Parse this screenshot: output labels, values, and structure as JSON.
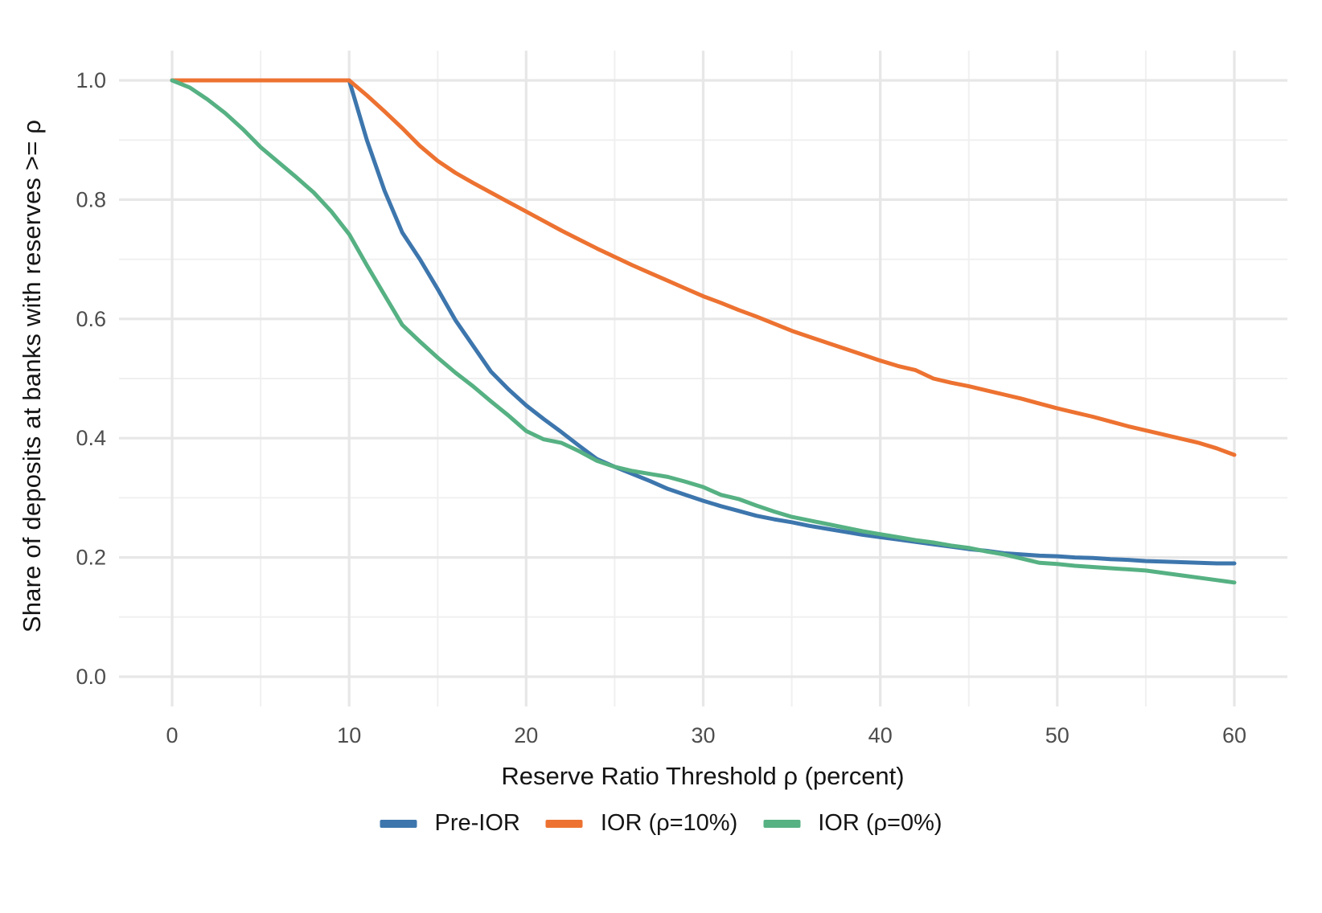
{
  "chart_data": {
    "type": "line",
    "title": "",
    "xlabel": "Reserve Ratio Threshold ρ (percent)",
    "ylabel": "Share of deposits at banks with reserves >= ρ",
    "xlim": [
      0,
      60
    ],
    "ylim": [
      0,
      1.0
    ],
    "grid": true,
    "legend_position": "bottom",
    "x_ticks": [
      0,
      10,
      20,
      30,
      40,
      50,
      60
    ],
    "x_tick_labels": [
      "0",
      "10",
      "20",
      "30",
      "40",
      "50",
      "60"
    ],
    "x_minor_ticks": [
      5,
      15,
      25,
      35,
      45,
      55
    ],
    "y_ticks": [
      0.0,
      0.2,
      0.4,
      0.6,
      0.8,
      1.0
    ],
    "y_tick_labels": [
      "0.0",
      "0.2",
      "0.4",
      "0.6",
      "0.8",
      "1.0"
    ],
    "y_minor_ticks": [
      0.1,
      0.3,
      0.5,
      0.7,
      0.9
    ],
    "colors": {
      "grid_major": "#e7e7e7",
      "grid_minor": "#f0f0f0",
      "tick_text": "#4d4d4d",
      "title_text": "#141414"
    },
    "x": [
      0,
      1,
      2,
      3,
      4,
      5,
      6,
      7,
      8,
      9,
      10,
      11,
      12,
      13,
      14,
      15,
      16,
      17,
      18,
      19,
      20,
      21,
      22,
      23,
      24,
      25,
      26,
      27,
      28,
      29,
      30,
      31,
      32,
      33,
      34,
      35,
      36,
      37,
      38,
      39,
      40,
      41,
      42,
      43,
      44,
      45,
      46,
      47,
      48,
      49,
      50,
      51,
      52,
      53,
      54,
      55,
      56,
      57,
      58,
      59,
      60
    ],
    "series": [
      {
        "id": "pre-ior",
        "name": "Pre-IOR",
        "color": "#3d76ad",
        "values": [
          1,
          1,
          1,
          1,
          1,
          1,
          1,
          1,
          1,
          1,
          1,
          0.9,
          0.815,
          0.745,
          0.7,
          0.65,
          0.598,
          0.555,
          0.512,
          0.482,
          0.455,
          0.432,
          0.41,
          0.387,
          0.365,
          0.352,
          0.34,
          0.328,
          0.315,
          0.305,
          0.295,
          0.286,
          0.278,
          0.27,
          0.264,
          0.259,
          0.253,
          0.248,
          0.243,
          0.238,
          0.234,
          0.23,
          0.226,
          0.222,
          0.218,
          0.214,
          0.211,
          0.207,
          0.205,
          0.203,
          0.202,
          0.2,
          0.199,
          0.197,
          0.196,
          0.194,
          0.193,
          0.192,
          0.191,
          0.19,
          0.19
        ]
      },
      {
        "id": "ior-10",
        "name": "IOR (ρ=10%)",
        "color": "#ed7231",
        "values": [
          1,
          1,
          1,
          1,
          1,
          1,
          1,
          1,
          1,
          1,
          1,
          0.975,
          0.948,
          0.92,
          0.89,
          0.865,
          0.845,
          0.828,
          0.812,
          0.796,
          0.78,
          0.764,
          0.748,
          0.733,
          0.718,
          0.704,
          0.69,
          0.677,
          0.664,
          0.651,
          0.638,
          0.627,
          0.615,
          0.604,
          0.592,
          0.58,
          0.57,
          0.56,
          0.55,
          0.54,
          0.53,
          0.521,
          0.514,
          0.5,
          0.493,
          0.487,
          0.48,
          0.473,
          0.466,
          0.458,
          0.45,
          0.443,
          0.436,
          0.428,
          0.42,
          0.413,
          0.406,
          0.399,
          0.392,
          0.383,
          0.372
        ]
      },
      {
        "id": "ior-0",
        "name": "IOR (ρ=0%)",
        "color": "#56b183",
        "values": [
          1,
          0.988,
          0.968,
          0.945,
          0.918,
          0.888,
          0.863,
          0.838,
          0.812,
          0.78,
          0.742,
          0.69,
          0.64,
          0.59,
          0.562,
          0.535,
          0.51,
          0.487,
          0.462,
          0.438,
          0.412,
          0.398,
          0.392,
          0.378,
          0.362,
          0.352,
          0.345,
          0.34,
          0.335,
          0.327,
          0.318,
          0.305,
          0.298,
          0.287,
          0.277,
          0.268,
          0.262,
          0.256,
          0.25,
          0.244,
          0.239,
          0.234,
          0.229,
          0.225,
          0.22,
          0.216,
          0.21,
          0.205,
          0.198,
          0.191,
          0.189,
          0.186,
          0.184,
          0.182,
          0.18,
          0.178,
          0.174,
          0.17,
          0.166,
          0.162,
          0.158
        ]
      }
    ]
  }
}
